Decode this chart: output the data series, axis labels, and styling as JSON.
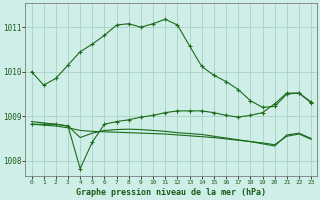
{
  "bg_color": "#d0eee8",
  "grid_color": "#a0ccbb",
  "line_color": "#1a6b1a",
  "xlabel": "Graphe pression niveau de la mer (hPa)",
  "ylim": [
    1007.65,
    1011.55
  ],
  "xlim": [
    -0.5,
    23.5
  ],
  "yticks": [
    1008,
    1009,
    1010,
    1011
  ],
  "xticks": [
    0,
    1,
    2,
    3,
    4,
    5,
    6,
    7,
    8,
    9,
    10,
    11,
    12,
    13,
    14,
    15,
    16,
    17,
    18,
    19,
    20,
    21,
    22,
    23
  ],
  "s1_x": [
    0,
    1,
    2,
    3,
    4,
    5,
    6,
    7,
    8,
    9,
    10,
    11,
    12,
    13,
    14,
    15,
    16,
    17,
    18,
    19,
    20,
    21,
    22,
    23
  ],
  "s1_y": [
    1010.0,
    1009.7,
    1009.85,
    1010.15,
    1010.45,
    1010.62,
    1010.82,
    1011.05,
    1011.08,
    1011.0,
    1011.08,
    1011.18,
    1011.05,
    1010.58,
    1010.12,
    1009.92,
    1009.78,
    1009.6,
    1009.35,
    1009.2,
    1009.22,
    1009.5,
    1009.52,
    1009.3
  ],
  "s2_x": [
    0,
    1,
    2,
    3,
    4,
    5,
    6,
    7,
    8,
    9,
    10,
    11,
    12,
    13,
    14,
    15,
    16,
    17,
    18,
    19,
    20,
    21,
    22,
    23
  ],
  "s2_y": [
    1008.82,
    1008.82,
    1008.82,
    1008.78,
    1007.82,
    1008.42,
    1008.82,
    1008.88,
    1008.92,
    1008.98,
    1009.02,
    1009.08,
    1009.12,
    1009.12,
    1009.12,
    1009.08,
    1009.02,
    1008.98,
    1009.02,
    1009.08,
    1009.28,
    1009.52,
    1009.52,
    1009.32
  ],
  "s3_x": [
    0,
    1,
    2,
    3,
    4,
    5,
    6,
    7,
    8,
    9,
    10,
    11,
    12,
    13,
    14,
    15,
    16,
    17,
    18,
    19,
    20,
    21,
    22,
    23
  ],
  "s3_y": [
    1008.82,
    1008.8,
    1008.78,
    1008.74,
    1008.68,
    1008.66,
    1008.65,
    1008.64,
    1008.63,
    1008.62,
    1008.61,
    1008.6,
    1008.58,
    1008.56,
    1008.54,
    1008.52,
    1008.49,
    1008.46,
    1008.43,
    1008.4,
    1008.36,
    1008.55,
    1008.6,
    1008.48
  ],
  "s4_x": [
    0,
    1,
    2,
    3,
    4,
    5,
    6,
    7,
    8,
    9,
    10,
    11,
    12,
    13,
    14,
    15,
    16,
    17,
    18,
    19,
    20,
    21,
    22,
    23
  ],
  "s4_y": [
    1008.88,
    1008.85,
    1008.82,
    1008.78,
    1008.52,
    1008.62,
    1008.68,
    1008.7,
    1008.71,
    1008.7,
    1008.68,
    1008.66,
    1008.63,
    1008.61,
    1008.59,
    1008.55,
    1008.51,
    1008.47,
    1008.43,
    1008.38,
    1008.33,
    1008.58,
    1008.62,
    1008.5
  ]
}
